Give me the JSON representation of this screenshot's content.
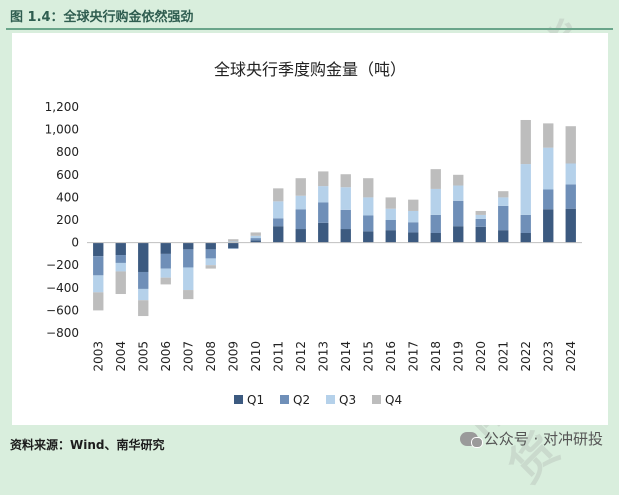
{
  "figure_title": "图 1.4：全球央行购金依然强劲",
  "source_note": "资料来源：Wind、南华研究",
  "watermark": {
    "label": "公众号 · 对冲研投",
    "icon": "wechat-icon",
    "background_text": "南华期货"
  },
  "colors": {
    "background": "#d9eedd",
    "plot_bg": "#ffffff",
    "q1": "#3c5a80",
    "q2": "#6f8fb8",
    "q3": "#b5d1ea",
    "q4": "#bdbdbd",
    "title_green": "#2f5d50"
  },
  "chart_data": {
    "type": "bar",
    "stacked": true,
    "title": "全球央行季度购金量（吨）",
    "xlabel": "",
    "ylabel": "",
    "ylim": [
      -800,
      1200
    ],
    "yticks": [
      -800,
      -600,
      -400,
      -200,
      0,
      200,
      400,
      600,
      800,
      1000,
      1200
    ],
    "ytick_labels": [
      "−800",
      "−600",
      "−400",
      "−200",
      "0",
      "200",
      "400",
      "600",
      "800",
      "1,000",
      "1,200"
    ],
    "grid": false,
    "legend": "bottom",
    "categories": [
      "2003",
      "2004",
      "2005",
      "2006",
      "2007",
      "2008",
      "2009",
      "2010",
      "2011",
      "2012",
      "2013",
      "2014",
      "2015",
      "2016",
      "2017",
      "2018",
      "2019",
      "2020",
      "2021",
      "2022",
      "2023",
      "2024"
    ],
    "series": [
      {
        "name": "Q1",
        "values": [
          -120,
          -110,
          -260,
          -100,
          -60,
          -60,
          -50,
          20,
          145,
          120,
          175,
          120,
          100,
          110,
          90,
          85,
          145,
          140,
          110,
          85,
          295,
          300
        ]
      },
      {
        "name": "Q2",
        "values": [
          -170,
          -70,
          -150,
          -130,
          -160,
          -80,
          -5,
          20,
          70,
          175,
          180,
          170,
          140,
          90,
          90,
          160,
          225,
          70,
          215,
          160,
          175,
          215
        ]
      },
      {
        "name": "Q3",
        "values": [
          -150,
          -75,
          -100,
          -80,
          -200,
          -60,
          10,
          20,
          150,
          120,
          145,
          200,
          160,
          100,
          100,
          230,
          135,
          35,
          75,
          450,
          370,
          185
        ]
      },
      {
        "name": "Q4",
        "values": [
          -160,
          -200,
          -140,
          -60,
          -80,
          -30,
          20,
          30,
          115,
          155,
          130,
          115,
          170,
          100,
          100,
          175,
          95,
          35,
          55,
          390,
          215,
          330
        ]
      }
    ]
  }
}
